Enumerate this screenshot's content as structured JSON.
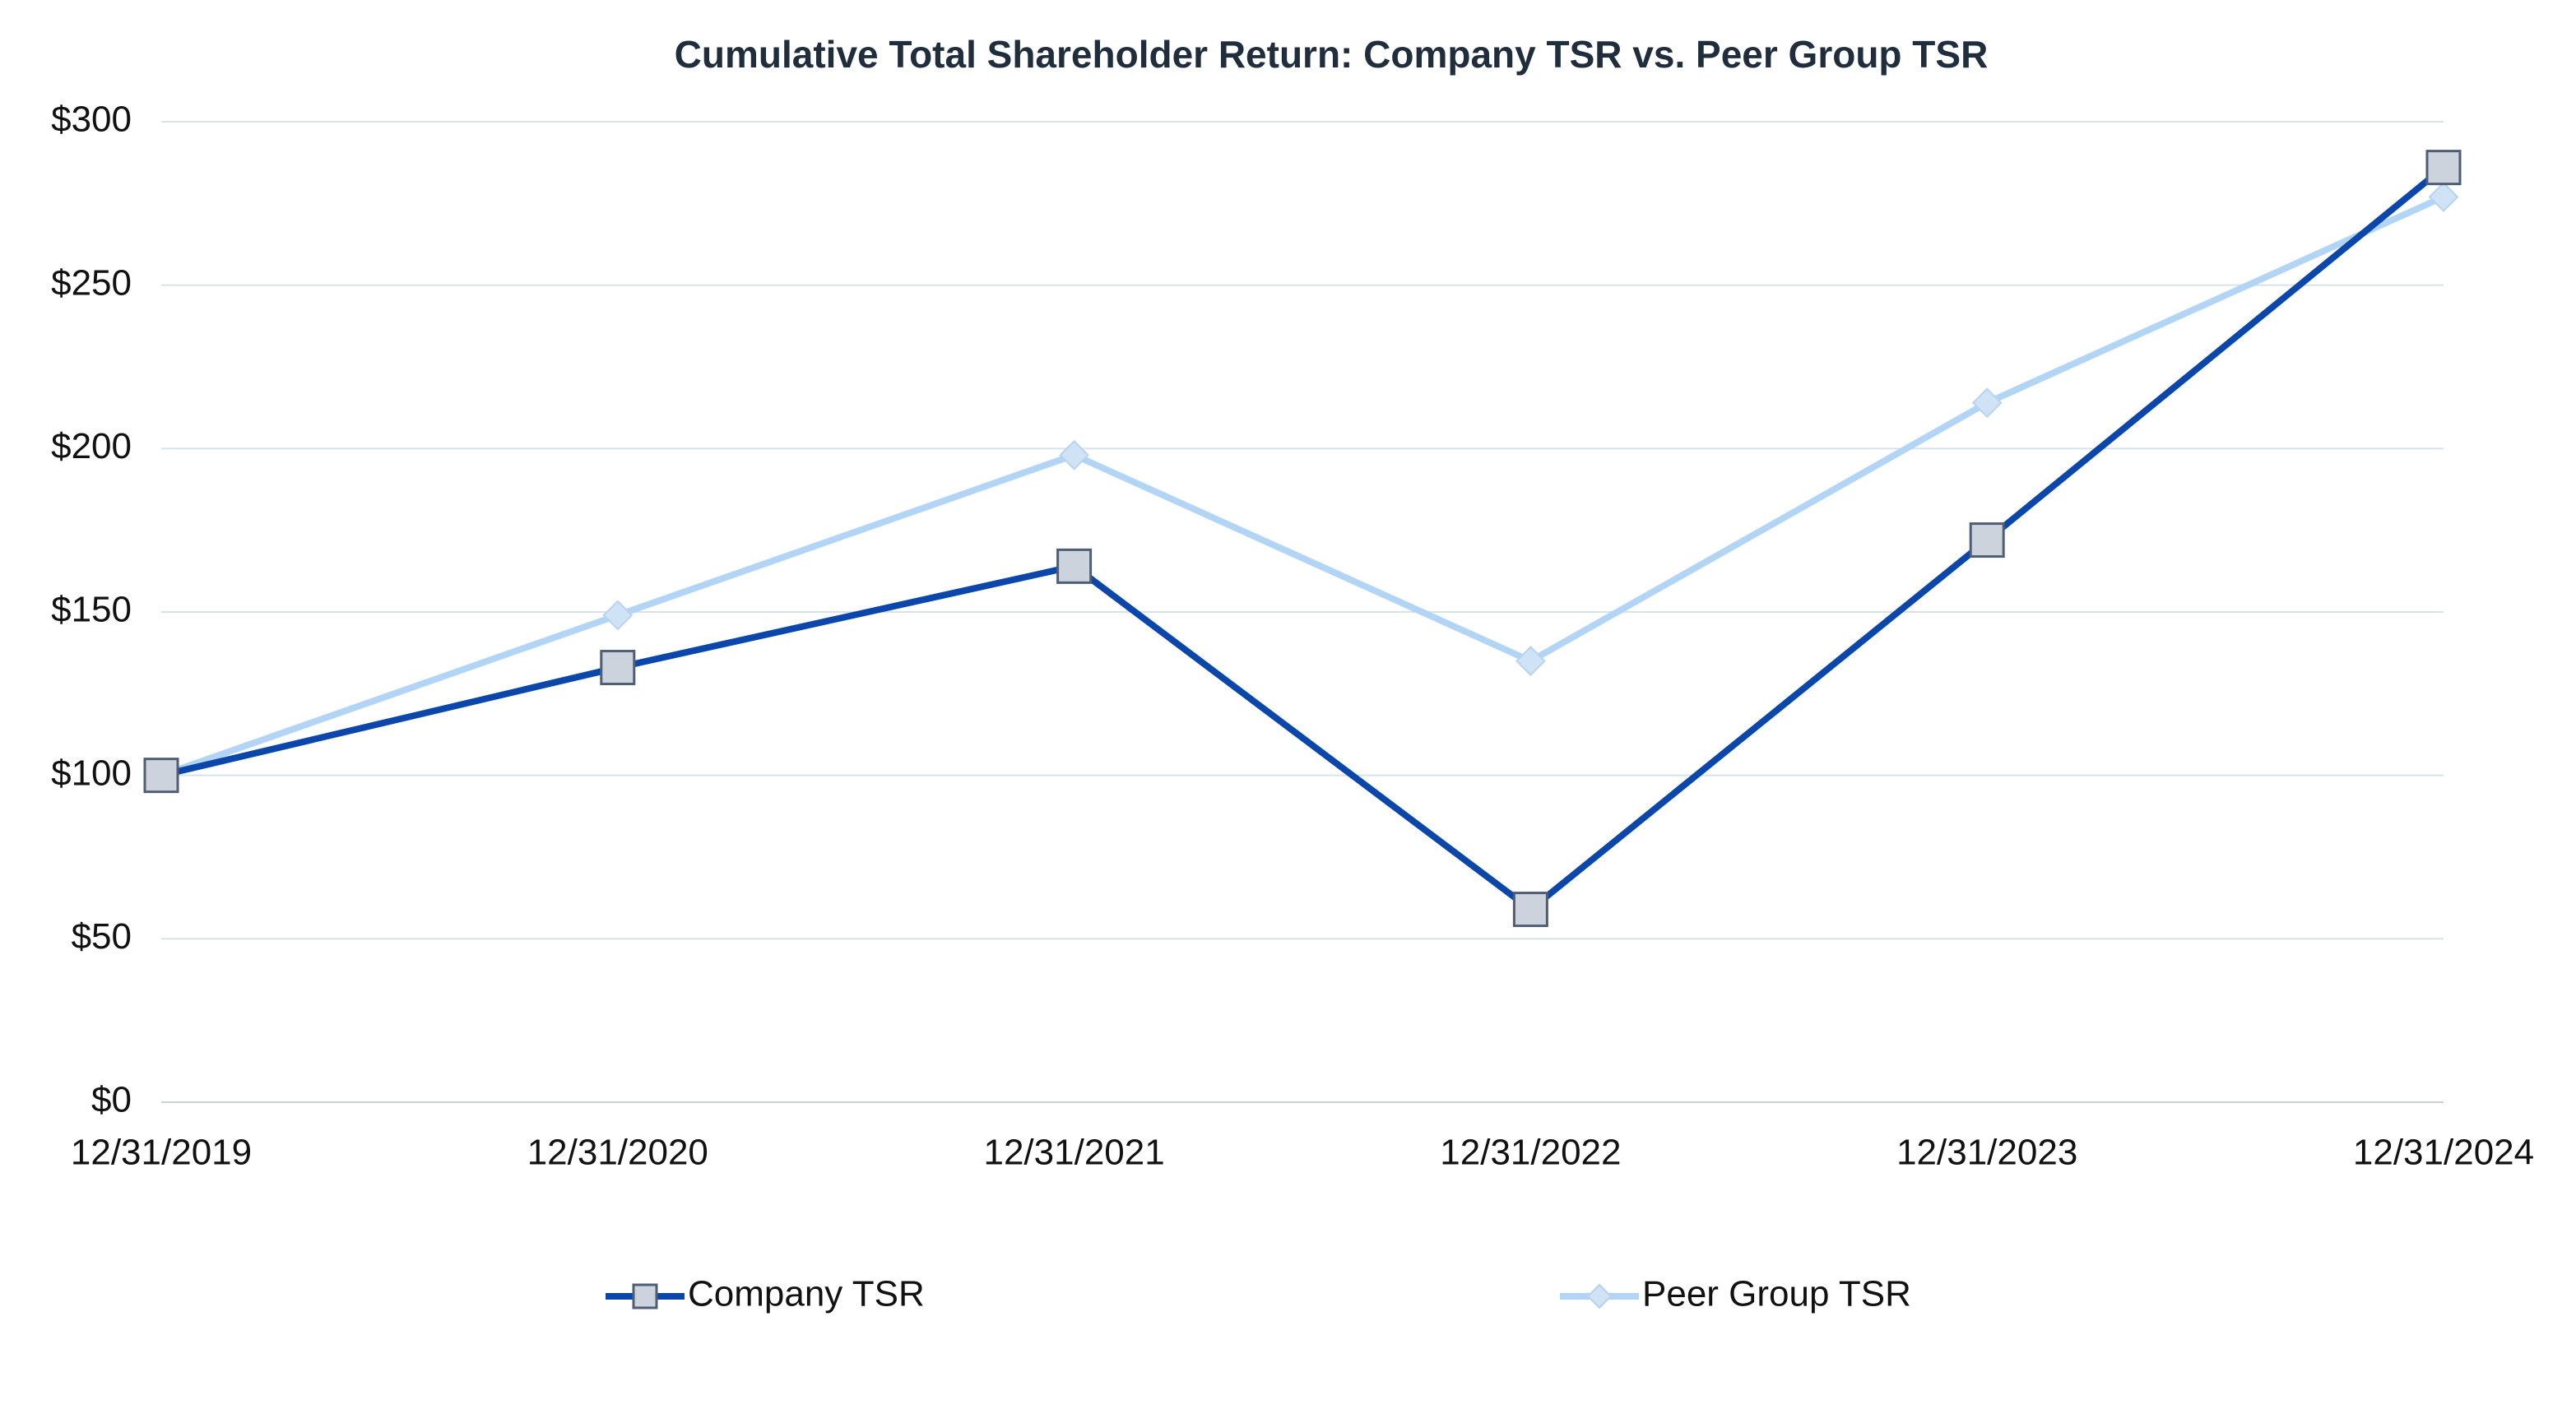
{
  "chart_data": {
    "type": "line",
    "title": "Cumulative Total Shareholder Return: Company TSR vs. Peer Group TSR",
    "categories": [
      "12/31/2019",
      "12/31/2020",
      "12/31/2021",
      "12/31/2022",
      "12/31/2023",
      "12/31/2024"
    ],
    "series": [
      {
        "name": "Company TSR",
        "color": "#0b47aa",
        "marker": "square",
        "values": [
          100,
          133,
          164,
          59,
          172,
          286
        ]
      },
      {
        "name": "Peer Group TSR",
        "color": "#b2d5f6",
        "marker": "diamond",
        "values": [
          100,
          149,
          198,
          135,
          214,
          277
        ]
      }
    ],
    "ylim": [
      0,
      300
    ],
    "yticks": [
      {
        "value": 0,
        "label": "$0"
      },
      {
        "value": 50,
        "label": "$50"
      },
      {
        "value": 100,
        "label": "$100"
      },
      {
        "value": 150,
        "label": "$150"
      },
      {
        "value": 200,
        "label": "$200"
      },
      {
        "value": 250,
        "label": "$250"
      },
      {
        "value": 300,
        "label": "$300"
      }
    ],
    "grid": true,
    "legend": "bottom"
  }
}
